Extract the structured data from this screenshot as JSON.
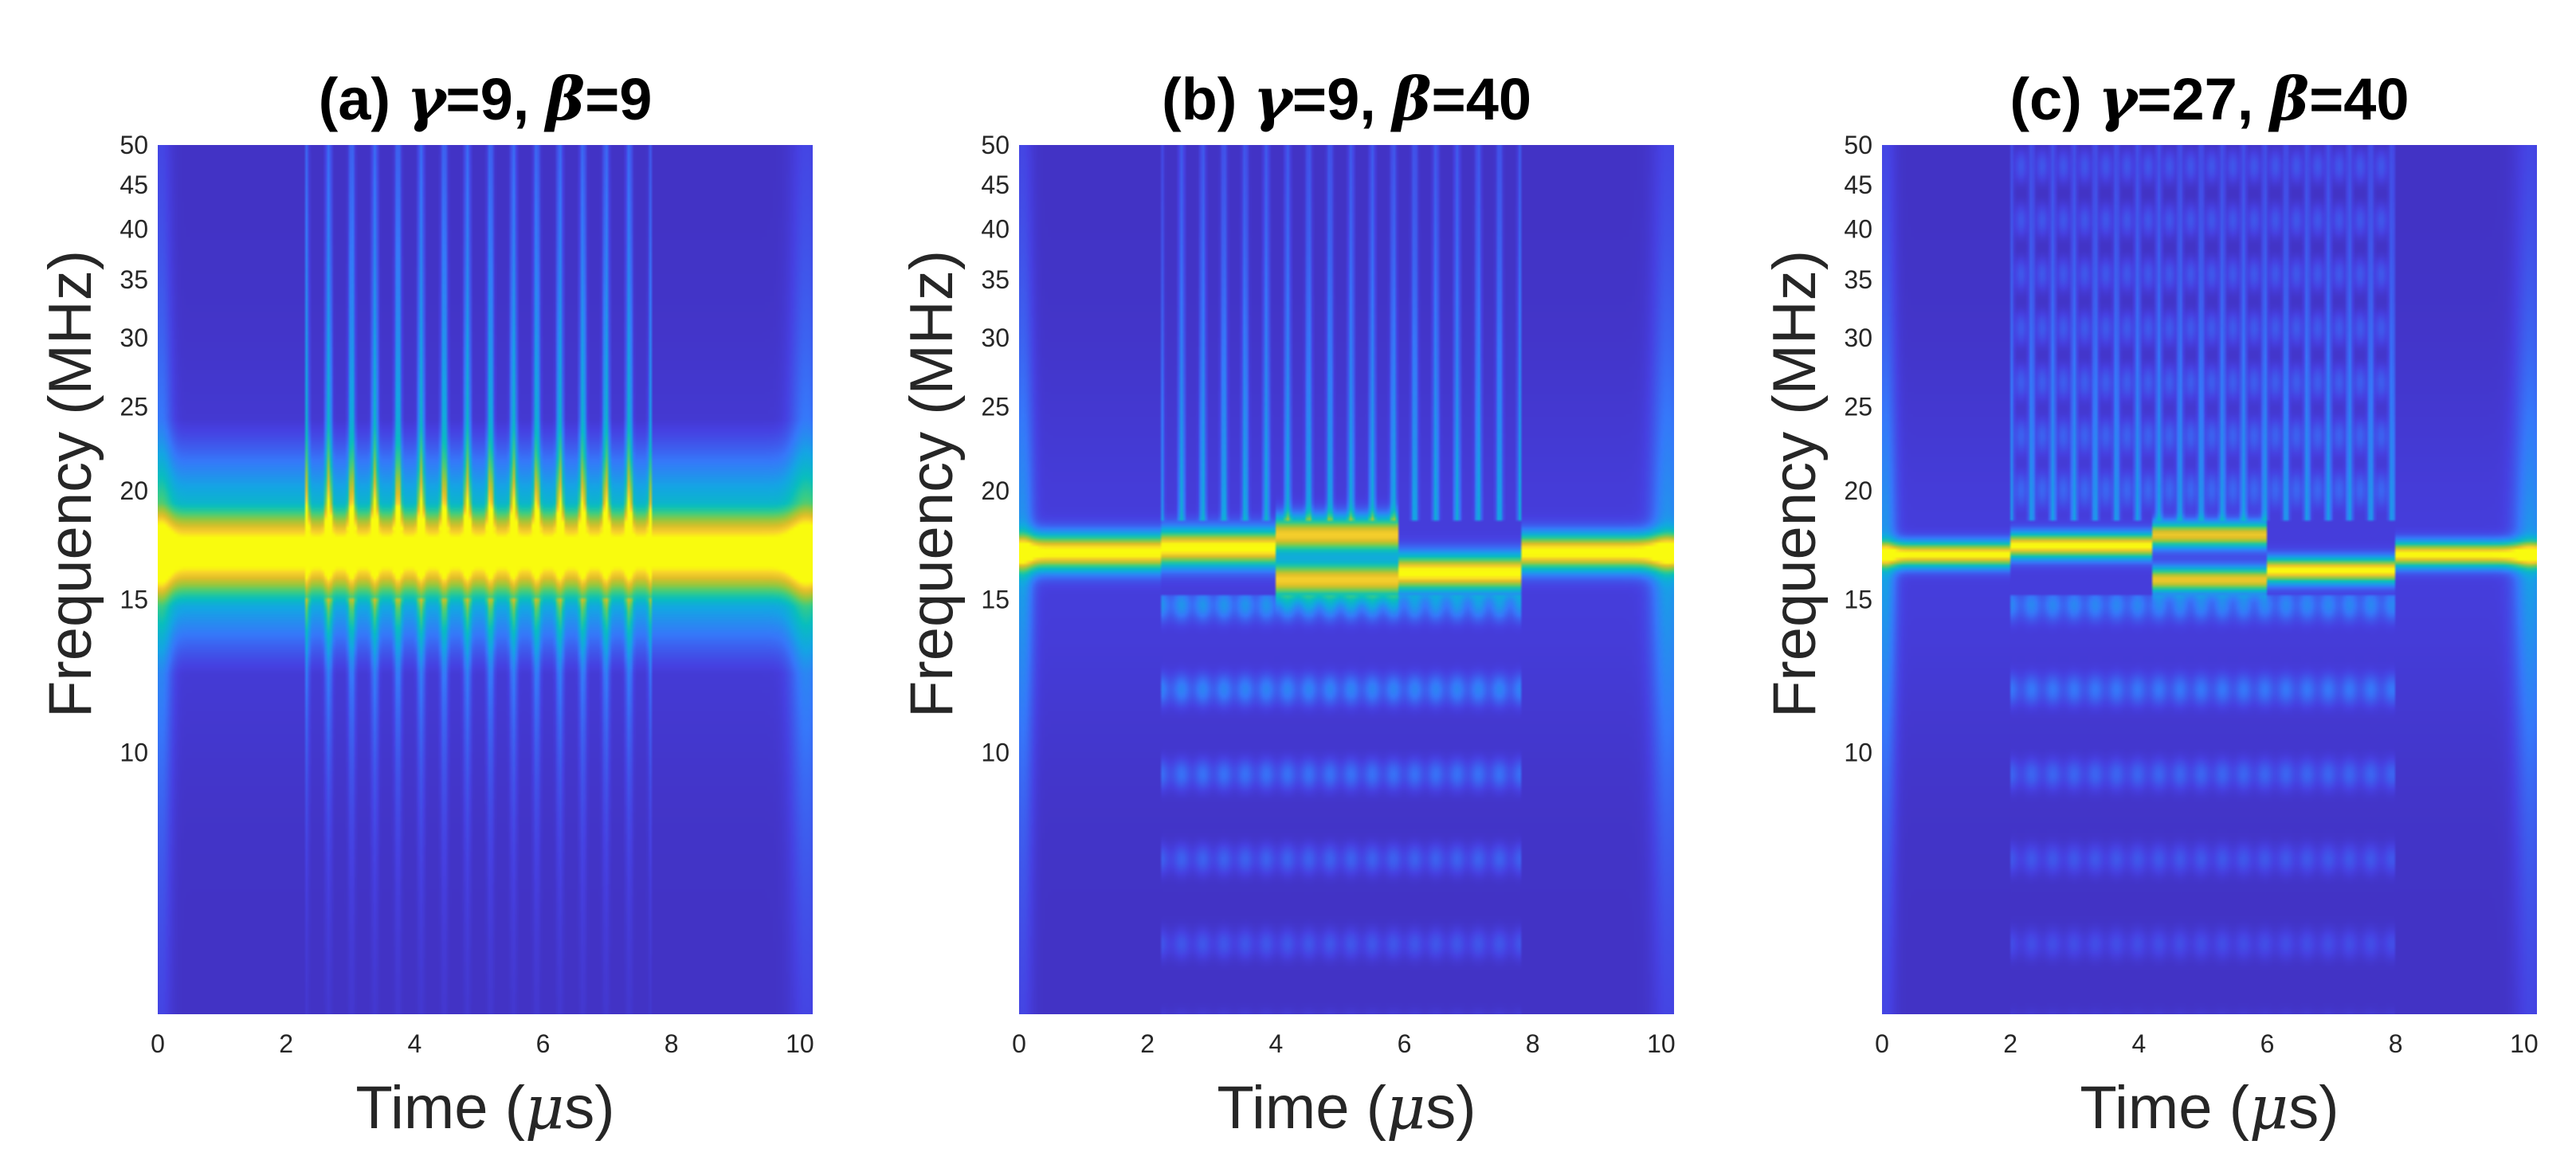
{
  "chart_data": [
    {
      "type": "heatmap",
      "title": "(a) γ=9, β=9",
      "title_parts": {
        "prefix": "(a) ",
        "g_sym": "γ",
        "g_val": "=9, ",
        "b_sym": "β",
        "b_val": "=9"
      },
      "xlabel": "Time (μs)",
      "xlabel_parts": {
        "pre": "Time (",
        "mu": "μ",
        "post": "s)"
      },
      "ylabel": "Frequency (MHz)",
      "xlim": [
        0,
        10.2
      ],
      "ylim": [
        5,
        50
      ],
      "yscale": "log",
      "x_ticks": [
        0,
        2,
        4,
        6,
        8,
        10
      ],
      "y_ticks": [
        10,
        15,
        20,
        25,
        30,
        35,
        40,
        45,
        50
      ],
      "colormap": "parula",
      "main_band": {
        "center_mhz": 17,
        "strength": "strong, wide (approx. 15–20 MHz)"
      },
      "segments": [
        {
          "t_start": 0,
          "t_end": 2.3,
          "freq_mhz": [
            17
          ]
        },
        {
          "t_start": 2.3,
          "t_end": 4.1,
          "freq_mhz": [
            17
          ]
        },
        {
          "t_start": 4.1,
          "t_end": 5.9,
          "freq_mhz": [
            17
          ]
        },
        {
          "t_start": 5.9,
          "t_end": 7.7,
          "freq_mhz": [
            17
          ]
        },
        {
          "t_start": 7.7,
          "t_end": 10.2,
          "freq_mhz": [
            17
          ]
        }
      ],
      "modulation_window_us": [
        2.3,
        7.7
      ]
    },
    {
      "type": "heatmap",
      "title": "(b) γ=9, β=40",
      "title_parts": {
        "prefix": "(b) ",
        "g_sym": "γ",
        "g_val": "=9, ",
        "b_sym": "β",
        "b_val": "=40"
      },
      "xlabel": "Time (μs)",
      "xlabel_parts": {
        "pre": "Time (",
        "mu": "μ",
        "post": "s)"
      },
      "ylabel": "Frequency (MHz)",
      "xlim": [
        0,
        10.2
      ],
      "ylim": [
        5,
        50
      ],
      "yscale": "log",
      "x_ticks": [
        0,
        2,
        4,
        6,
        8,
        10
      ],
      "y_ticks": [
        10,
        15,
        20,
        25,
        30,
        35,
        40,
        45,
        50
      ],
      "colormap": "parula",
      "main_band": {
        "center_mhz": 17,
        "strength": "narrow"
      },
      "segments": [
        {
          "t_start": 0,
          "t_end": 2.2,
          "freq_mhz": [
            17
          ]
        },
        {
          "t_start": 2.2,
          "t_end": 4.0,
          "freq_mhz": [
            17.2
          ]
        },
        {
          "t_start": 4.0,
          "t_end": 5.9,
          "freq_mhz": [
            17.8,
            15.8
          ]
        },
        {
          "t_start": 5.9,
          "t_end": 7.8,
          "freq_mhz": [
            16.1
          ]
        },
        {
          "t_start": 7.8,
          "t_end": 10.2,
          "freq_mhz": [
            17
          ]
        }
      ],
      "modulation_window_us": [
        2.2,
        7.8
      ]
    },
    {
      "type": "heatmap",
      "title": "(c) γ=27, β=40",
      "title_parts": {
        "prefix": "(c) ",
        "g_sym": "γ",
        "g_val": "=27, ",
        "b_sym": "β",
        "b_val": "=40"
      },
      "xlabel": "Time (μs)",
      "xlabel_parts": {
        "pre": "Time (",
        "mu": "μ",
        "post": "s)"
      },
      "ylabel": "Frequency (MHz)",
      "xlim": [
        0,
        10.2
      ],
      "ylim": [
        5,
        50
      ],
      "yscale": "log",
      "x_ticks": [
        0,
        2,
        4,
        6,
        8,
        10
      ],
      "y_ticks": [
        10,
        15,
        20,
        25,
        30,
        35,
        40,
        45,
        50
      ],
      "colormap": "parula",
      "main_band": {
        "center_mhz": 17,
        "strength": "thin"
      },
      "segments": [
        {
          "t_start": 0,
          "t_end": 2.0,
          "freq_mhz": [
            16.9
          ]
        },
        {
          "t_start": 2.0,
          "t_end": 4.2,
          "freq_mhz": [
            17.3
          ]
        },
        {
          "t_start": 4.2,
          "t_end": 6.0,
          "freq_mhz": [
            17.8,
            15.8
          ]
        },
        {
          "t_start": 6.0,
          "t_end": 8.0,
          "freq_mhz": [
            16.2
          ]
        },
        {
          "t_start": 8.0,
          "t_end": 10.2,
          "freq_mhz": [
            16.9
          ]
        }
      ],
      "modulation_window_us": [
        2.0,
        8.0
      ]
    }
  ],
  "colors": {
    "background_low": "#3e2fbf",
    "band_peak": "#f9fb0e",
    "text": "#262626",
    "title": "#000000"
  }
}
